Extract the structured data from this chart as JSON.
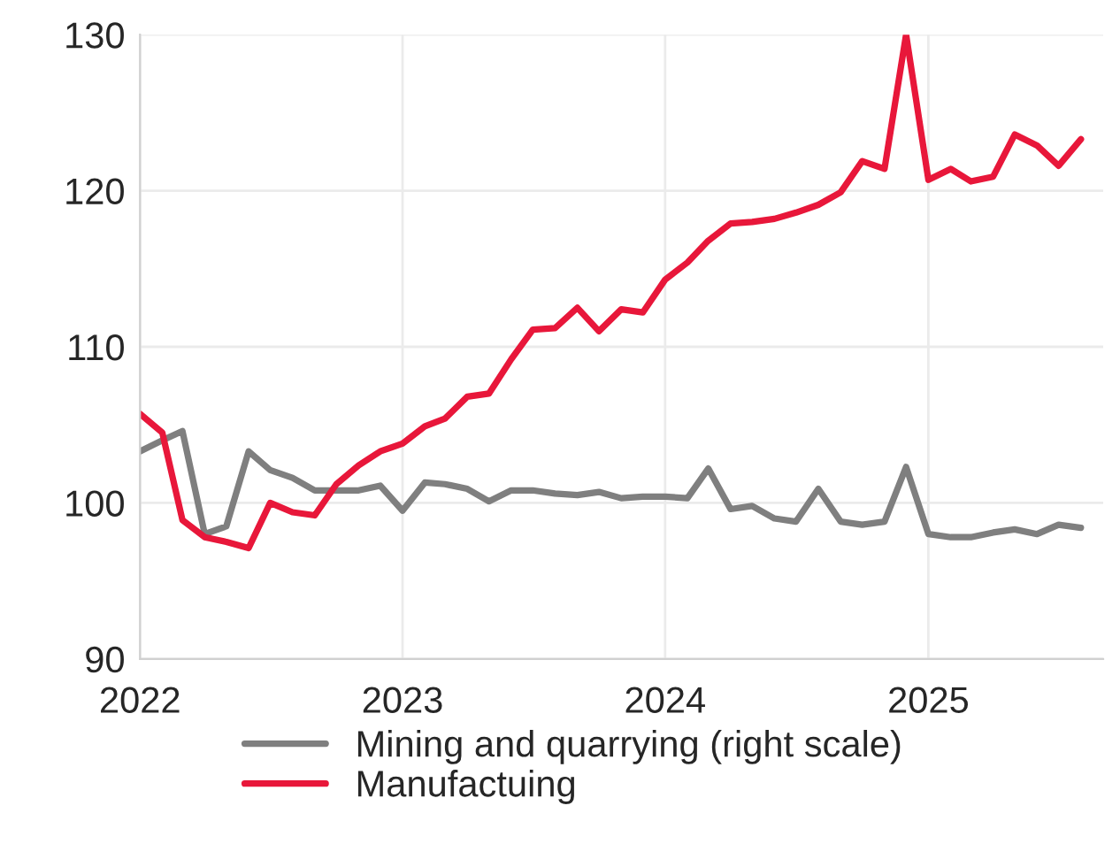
{
  "chart_data": {
    "type": "line",
    "x": [
      "2022-01",
      "2022-02",
      "2022-03",
      "2022-04",
      "2022-05",
      "2022-06",
      "2022-07",
      "2022-08",
      "2022-09",
      "2022-10",
      "2022-11",
      "2022-12",
      "2023-01",
      "2023-02",
      "2023-03",
      "2023-04",
      "2023-05",
      "2023-06",
      "2023-07",
      "2023-08",
      "2023-09",
      "2023-10",
      "2023-11",
      "2023-12",
      "2024-01",
      "2024-02",
      "2024-03",
      "2024-04",
      "2024-05",
      "2024-06",
      "2024-07",
      "2024-08",
      "2024-09",
      "2024-10",
      "2024-11",
      "2024-12",
      "2025-01",
      "2025-02",
      "2025-03",
      "2025-04",
      "2025-05",
      "2025-06",
      "2025-07",
      "2025-08"
    ],
    "series": [
      {
        "name": "Mining and quarrying (right scale)",
        "color": "#7f7f7f",
        "values": [
          103.3,
          104.0,
          104.6,
          98.0,
          98.5,
          103.3,
          102.1,
          101.6,
          100.8,
          100.8,
          100.8,
          101.1,
          99.5,
          101.3,
          101.2,
          100.9,
          100.1,
          100.8,
          100.8,
          100.6,
          100.5,
          100.7,
          100.3,
          100.4,
          100.4,
          100.3,
          102.2,
          99.6,
          99.8,
          99.0,
          98.8,
          100.9,
          98.8,
          98.6,
          98.8,
          102.3,
          98.0,
          97.8,
          97.8,
          98.1,
          98.3,
          98.0,
          98.6,
          98.4
        ]
      },
      {
        "name": "Manufactuing",
        "color": "#e8173a",
        "values": [
          105.7,
          104.5,
          98.9,
          97.8,
          97.5,
          97.1,
          100.0,
          99.4,
          99.2,
          101.2,
          102.4,
          103.3,
          103.8,
          104.9,
          105.4,
          106.8,
          107.0,
          109.2,
          111.1,
          111.2,
          112.5,
          111.0,
          112.4,
          112.2,
          114.3,
          115.4,
          116.8,
          117.9,
          118.0,
          118.2,
          118.6,
          119.1,
          119.9,
          121.9,
          121.4,
          130.0,
          120.7,
          121.4,
          120.6,
          120.9,
          123.6,
          122.9,
          121.6,
          123.3
        ]
      }
    ],
    "xlim": [
      "2022-01",
      "2025-09"
    ],
    "xticks": [
      {
        "value": "2022-01",
        "label": "2022"
      },
      {
        "value": "2023-01",
        "label": "2023"
      },
      {
        "value": "2024-01",
        "label": "2024"
      },
      {
        "value": "2025-01",
        "label": "2025"
      }
    ],
    "ylim": [
      90,
      130
    ],
    "yticks": [
      90,
      100,
      110,
      120,
      130
    ],
    "grid": true,
    "legend": "bottom",
    "line_style": "solid",
    "marker": "none"
  }
}
